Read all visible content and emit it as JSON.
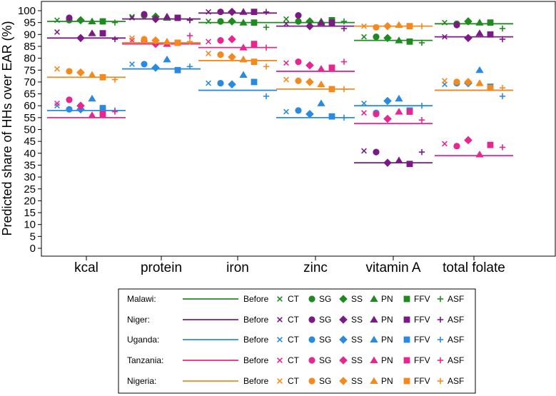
{
  "chart_data": {
    "type": "scatter",
    "ylabel": "Predicted share of HHs over EAR (%)",
    "ylim": [
      0,
      100
    ],
    "yticks": [
      0,
      5,
      10,
      15,
      20,
      25,
      30,
      35,
      40,
      45,
      50,
      55,
      60,
      65,
      70,
      75,
      80,
      85,
      90,
      95,
      100
    ],
    "categories": [
      "kcal",
      "protein",
      "iron",
      "zinc",
      "vitamin A",
      "total folate"
    ],
    "before_label": "Before",
    "scenarios": [
      "CT",
      "SG",
      "SS",
      "PN",
      "FFV",
      "ASF"
    ],
    "series": [
      {
        "name": "Malawi",
        "legend_label": "Malawi:",
        "color": "#1f8a1f",
        "before": [
          95.5,
          96.5,
          95,
          95,
          87.5,
          94.5
        ],
        "values": {
          "CT": [
            96,
            97.5,
            95.5,
            96.5,
            89,
            95
          ],
          "SG": [
            96,
            98,
            95.5,
            95.5,
            89,
            94.5
          ],
          "SS": [
            96,
            97.5,
            95.5,
            95.5,
            88.5,
            95.5
          ],
          "PN": [
            95.5,
            97,
            95,
            95.5,
            87.5,
            95
          ],
          "FFV": [
            95.5,
            97,
            95,
            96,
            87,
            95
          ],
          "ASF": [
            95,
            96,
            93,
            95.5,
            86.5,
            92.5
          ]
        }
      },
      {
        "name": "Niger",
        "legend_label": "Niger:",
        "color": "#7a1a85",
        "before": [
          88.5,
          96.5,
          99,
          93.5,
          36,
          89
        ],
        "values": {
          "CT": [
            91,
            97,
            99.5,
            94.5,
            41,
            89
          ],
          "SG": [
            97,
            98.5,
            99.5,
            98,
            40.5,
            94
          ],
          "SS": [
            88.5,
            96.5,
            99.5,
            93.5,
            36,
            88.5
          ],
          "PN": [
            90.5,
            97.5,
            99.5,
            95,
            37,
            90.5
          ],
          "FFV": [
            90.5,
            97,
            99.5,
            95,
            35.5,
            90
          ],
          "ASF": [
            88,
            96,
            99.5,
            92.5,
            40.5,
            88
          ]
        }
      },
      {
        "name": "Uganda",
        "legend_label": "Uganda:",
        "color": "#2a8ae0",
        "before": [
          58,
          75.5,
          66.5,
          55,
          60,
          66.5
        ],
        "values": {
          "CT": [
            60,
            77.5,
            69.5,
            57.5,
            61,
            69
          ],
          "SG": [
            58.5,
            77.5,
            69.5,
            58,
            57,
            69.5
          ],
          "SS": [
            58.5,
            76,
            69,
            56.5,
            62,
            69.5
          ],
          "PN": [
            63,
            79.5,
            73,
            61,
            63,
            75
          ],
          "FFV": [
            59,
            75,
            70,
            55.5,
            58,
            68
          ],
          "ASF": [
            58,
            76.5,
            64,
            55,
            60,
            64
          ]
        }
      },
      {
        "name": "Tanzania",
        "legend_label": "Tanzania:",
        "color": "#e6278f",
        "before": [
          55,
          86,
          84.5,
          74.5,
          52.5,
          39
        ],
        "values": {
          "CT": [
            61,
            87.5,
            87,
            78,
            57,
            44
          ],
          "SG": [
            62.5,
            87.5,
            87.5,
            78.5,
            56.5,
            43
          ],
          "SS": [
            60,
            86,
            88,
            77,
            54.5,
            45.5
          ],
          "PN": [
            56,
            86,
            84.5,
            75.5,
            57.5,
            39.5
          ],
          "FFV": [
            56.5,
            86.5,
            86,
            76,
            57.5,
            43.5
          ],
          "ASF": [
            57.5,
            89.5,
            84.5,
            78.5,
            54,
            42.5
          ]
        }
      },
      {
        "name": "Nigeria",
        "legend_label": "Nigeria:",
        "color": "#f28a20",
        "before": [
          72,
          86.5,
          79,
          67,
          93.5,
          66.5
        ],
        "values": {
          "CT": [
            75.5,
            88.5,
            82,
            71,
            93.5,
            70.5
          ],
          "SG": [
            74.5,
            88,
            81.5,
            70.5,
            93,
            70
          ],
          "SS": [
            74,
            87.5,
            80.5,
            70,
            93.5,
            70
          ],
          "PN": [
            73,
            87,
            79.5,
            69,
            94,
            69.5
          ],
          "FFV": [
            72,
            86.5,
            78.5,
            67,
            93.5,
            67.5
          ],
          "ASF": [
            71,
            87,
            76.5,
            67,
            93.5,
            67.5
          ]
        }
      }
    ]
  }
}
